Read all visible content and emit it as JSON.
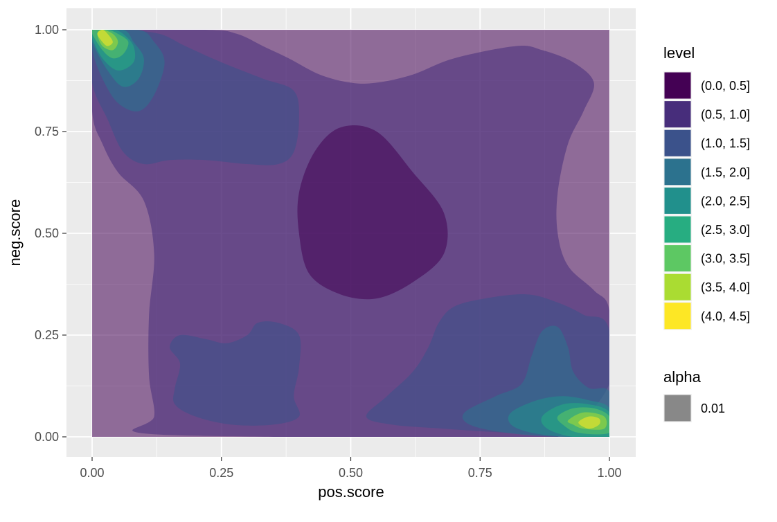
{
  "chart_data": {
    "type": "heatmap",
    "subtype": "filled-density-contour",
    "xlabel": "pos.score",
    "ylabel": "neg.score",
    "xlim": [
      0,
      1
    ],
    "ylim": [
      0,
      1
    ],
    "x_ticks": [
      "0.00",
      "0.25",
      "0.50",
      "0.75",
      "1.00"
    ],
    "y_ticks": [
      "0.00",
      "0.25",
      "0.50",
      "0.75",
      "1.00"
    ],
    "grid": true,
    "legend_placement": "right",
    "level_legend": {
      "title": "level",
      "entries": [
        {
          "label": "(0.0, 0.5]",
          "color": "#440154"
        },
        {
          "label": "(0.5, 1.0]",
          "color": "#472D7B"
        },
        {
          "label": "(1.0, 1.5]",
          "color": "#3B528B"
        },
        {
          "label": "(1.5, 2.0]",
          "color": "#2C728E"
        },
        {
          "label": "(2.0, 2.5]",
          "color": "#21908C"
        },
        {
          "label": "(2.5, 3.0]",
          "color": "#27AD81"
        },
        {
          "label": "(3.0, 3.5]",
          "color": "#5DC863"
        },
        {
          "label": "(3.5, 4.0]",
          "color": "#AADC32"
        },
        {
          "label": "(4.0, 4.5]",
          "color": "#FDE725"
        }
      ]
    },
    "alpha_legend": {
      "title": "alpha",
      "entries": [
        {
          "label": "0.01",
          "color": "#888888"
        }
      ]
    },
    "fill_opacity": 0.55,
    "regions": [
      {
        "level": 0,
        "points": [
          [
            0,
            0
          ],
          [
            1,
            0
          ],
          [
            1,
            1
          ],
          [
            0,
            1
          ]
        ]
      },
      {
        "level": 1,
        "points": [
          [
            0,
            0.8
          ],
          [
            0.02,
            0.72
          ],
          [
            0.05,
            0.65
          ],
          [
            0.1,
            0.58
          ],
          [
            0.12,
            0.45
          ],
          [
            0.11,
            0.3
          ],
          [
            0.11,
            0.15
          ],
          [
            0.12,
            0.05
          ],
          [
            0.09,
            0.01
          ],
          [
            0.35,
            0
          ],
          [
            0.5,
            0
          ],
          [
            0.65,
            0
          ],
          [
            0.78,
            0
          ],
          [
            0.9,
            0
          ],
          [
            1,
            0.13
          ],
          [
            1,
            0.31
          ],
          [
            0.97,
            0.36
          ],
          [
            0.92,
            0.42
          ],
          [
            0.9,
            0.5
          ],
          [
            0.9,
            0.6
          ],
          [
            0.92,
            0.72
          ],
          [
            0.95,
            0.8
          ],
          [
            0.97,
            0.87
          ],
          [
            0.93,
            0.92
          ],
          [
            0.87,
            0.95
          ],
          [
            0.82,
            0.96
          ],
          [
            0.7,
            0.93
          ],
          [
            0.62,
            0.89
          ],
          [
            0.55,
            0.87
          ],
          [
            0.5,
            0.87
          ],
          [
            0.44,
            0.89
          ],
          [
            0.38,
            0.93
          ],
          [
            0.33,
            0.96
          ],
          [
            0.28,
            0.99
          ],
          [
            0.22,
            1
          ],
          [
            0,
            1
          ]
        ]
      },
      {
        "level": 0,
        "points": [
          [
            0.42,
            0.4
          ],
          [
            0.48,
            0.35
          ],
          [
            0.55,
            0.34
          ],
          [
            0.62,
            0.38
          ],
          [
            0.68,
            0.45
          ],
          [
            0.68,
            0.55
          ],
          [
            0.62,
            0.65
          ],
          [
            0.55,
            0.75
          ],
          [
            0.48,
            0.76
          ],
          [
            0.43,
            0.7
          ],
          [
            0.4,
            0.6
          ],
          [
            0.4,
            0.5
          ]
        ]
      },
      {
        "level": 2,
        "points": [
          [
            0,
            0.87
          ],
          [
            0.03,
            0.78
          ],
          [
            0.06,
            0.7
          ],
          [
            0.1,
            0.67
          ],
          [
            0.15,
            0.68
          ],
          [
            0.22,
            0.68
          ],
          [
            0.3,
            0.67
          ],
          [
            0.36,
            0.67
          ],
          [
            0.39,
            0.7
          ],
          [
            0.4,
            0.78
          ],
          [
            0.39,
            0.85
          ],
          [
            0.33,
            0.88
          ],
          [
            0.25,
            0.92
          ],
          [
            0.18,
            0.96
          ],
          [
            0.13,
            0.99
          ],
          [
            0.06,
            1
          ],
          [
            0,
            1
          ]
        ]
      },
      {
        "level": 2,
        "points": [
          [
            0.17,
            0.25
          ],
          [
            0.22,
            0.24
          ],
          [
            0.26,
            0.23
          ],
          [
            0.3,
            0.25
          ],
          [
            0.32,
            0.28
          ],
          [
            0.36,
            0.28
          ],
          [
            0.4,
            0.25
          ],
          [
            0.4,
            0.17
          ],
          [
            0.39,
            0.1
          ],
          [
            0.4,
            0.05
          ],
          [
            0.35,
            0.03
          ],
          [
            0.27,
            0.03
          ],
          [
            0.2,
            0.05
          ],
          [
            0.16,
            0.08
          ],
          [
            0.16,
            0.12
          ],
          [
            0.17,
            0.18
          ],
          [
            0.15,
            0.22
          ]
        ]
      },
      {
        "level": 2,
        "points": [
          [
            0.53,
            0.05
          ],
          [
            0.57,
            0.1
          ],
          [
            0.62,
            0.16
          ],
          [
            0.65,
            0.22
          ],
          [
            0.67,
            0.28
          ],
          [
            0.7,
            0.32
          ],
          [
            0.76,
            0.34
          ],
          [
            0.84,
            0.35
          ],
          [
            0.9,
            0.33
          ],
          [
            0.95,
            0.3
          ],
          [
            1,
            0.26
          ],
          [
            1,
            0
          ],
          [
            0.92,
            0
          ],
          [
            0.8,
            0.01
          ],
          [
            0.68,
            0.02
          ],
          [
            0.58,
            0.03
          ]
        ]
      },
      {
        "level": 3,
        "points": [
          [
            0,
            0.95
          ],
          [
            0.02,
            0.88
          ],
          [
            0.05,
            0.82
          ],
          [
            0.09,
            0.8
          ],
          [
            0.12,
            0.84
          ],
          [
            0.14,
            0.92
          ],
          [
            0.12,
            0.97
          ],
          [
            0.09,
            1
          ],
          [
            0,
            1
          ]
        ]
      },
      {
        "level": 3,
        "points": [
          [
            0.72,
            0.06
          ],
          [
            0.78,
            0.1
          ],
          [
            0.83,
            0.13
          ],
          [
            0.85,
            0.2
          ],
          [
            0.87,
            0.26
          ],
          [
            0.9,
            0.27
          ],
          [
            0.92,
            0.22
          ],
          [
            0.93,
            0.16
          ],
          [
            0.96,
            0.12
          ],
          [
            1,
            0.11
          ],
          [
            1,
            0
          ],
          [
            0.9,
            0
          ],
          [
            0.8,
            0.01
          ],
          [
            0.73,
            0.03
          ]
        ]
      },
      {
        "level": 4,
        "points": [
          [
            0,
            0.97
          ],
          [
            0.03,
            0.9
          ],
          [
            0.06,
            0.86
          ],
          [
            0.09,
            0.88
          ],
          [
            0.1,
            0.93
          ],
          [
            0.08,
            0.97
          ],
          [
            0.06,
            1
          ],
          [
            0,
            1
          ]
        ]
      },
      {
        "level": 4,
        "points": [
          [
            0.81,
            0.06
          ],
          [
            0.86,
            0.09
          ],
          [
            0.91,
            0.1
          ],
          [
            0.96,
            0.09
          ],
          [
            1,
            0.07
          ],
          [
            1,
            0
          ],
          [
            0.92,
            0
          ],
          [
            0.85,
            0.01
          ],
          [
            0.81,
            0.03
          ]
        ]
      },
      {
        "level": 5,
        "points": [
          [
            0,
            0.98
          ],
          [
            0.02,
            0.93
          ],
          [
            0.05,
            0.9
          ],
          [
            0.08,
            0.92
          ],
          [
            0.08,
            0.96
          ],
          [
            0.06,
            0.99
          ],
          [
            0.04,
            1
          ],
          [
            0,
            1
          ]
        ]
      },
      {
        "level": 5,
        "points": [
          [
            0.87,
            0.05
          ],
          [
            0.91,
            0.08
          ],
          [
            0.96,
            0.08
          ],
          [
            1,
            0.06
          ],
          [
            1,
            0
          ],
          [
            0.93,
            0
          ],
          [
            0.88,
            0.02
          ]
        ]
      },
      {
        "level": 6,
        "points": [
          [
            0,
            0.99
          ],
          [
            0.02,
            0.95
          ],
          [
            0.04,
            0.93
          ],
          [
            0.06,
            0.94
          ],
          [
            0.07,
            0.97
          ],
          [
            0.05,
            0.99
          ],
          [
            0.03,
            1
          ],
          [
            0,
            1
          ]
        ]
      },
      {
        "level": 6,
        "points": [
          [
            0.9,
            0.05
          ],
          [
            0.93,
            0.07
          ],
          [
            0.97,
            0.07
          ],
          [
            1,
            0.05
          ],
          [
            1,
            0.01
          ],
          [
            0.94,
            0.01
          ],
          [
            0.91,
            0.03
          ]
        ]
      },
      {
        "level": 7,
        "points": [
          [
            0.01,
            0.99
          ],
          [
            0.02,
            0.96
          ],
          [
            0.04,
            0.95
          ],
          [
            0.05,
            0.97
          ],
          [
            0.04,
            0.99
          ],
          [
            0.02,
            1
          ]
        ]
      },
      {
        "level": 7,
        "points": [
          [
            0.92,
            0.04
          ],
          [
            0.95,
            0.06
          ],
          [
            0.99,
            0.05
          ],
          [
            0.99,
            0.02
          ],
          [
            0.95,
            0.02
          ],
          [
            0.93,
            0.03
          ]
        ]
      },
      {
        "level": 8,
        "points": [
          [
            0.01,
            0.99
          ],
          [
            0.02,
            0.97
          ],
          [
            0.03,
            0.96
          ],
          [
            0.04,
            0.97
          ],
          [
            0.03,
            0.99
          ],
          [
            0.02,
            1
          ]
        ]
      },
      {
        "level": 8,
        "points": [
          [
            0.94,
            0.035
          ],
          [
            0.96,
            0.05
          ],
          [
            0.98,
            0.045
          ],
          [
            0.98,
            0.03
          ],
          [
            0.96,
            0.02
          ]
        ]
      }
    ]
  }
}
